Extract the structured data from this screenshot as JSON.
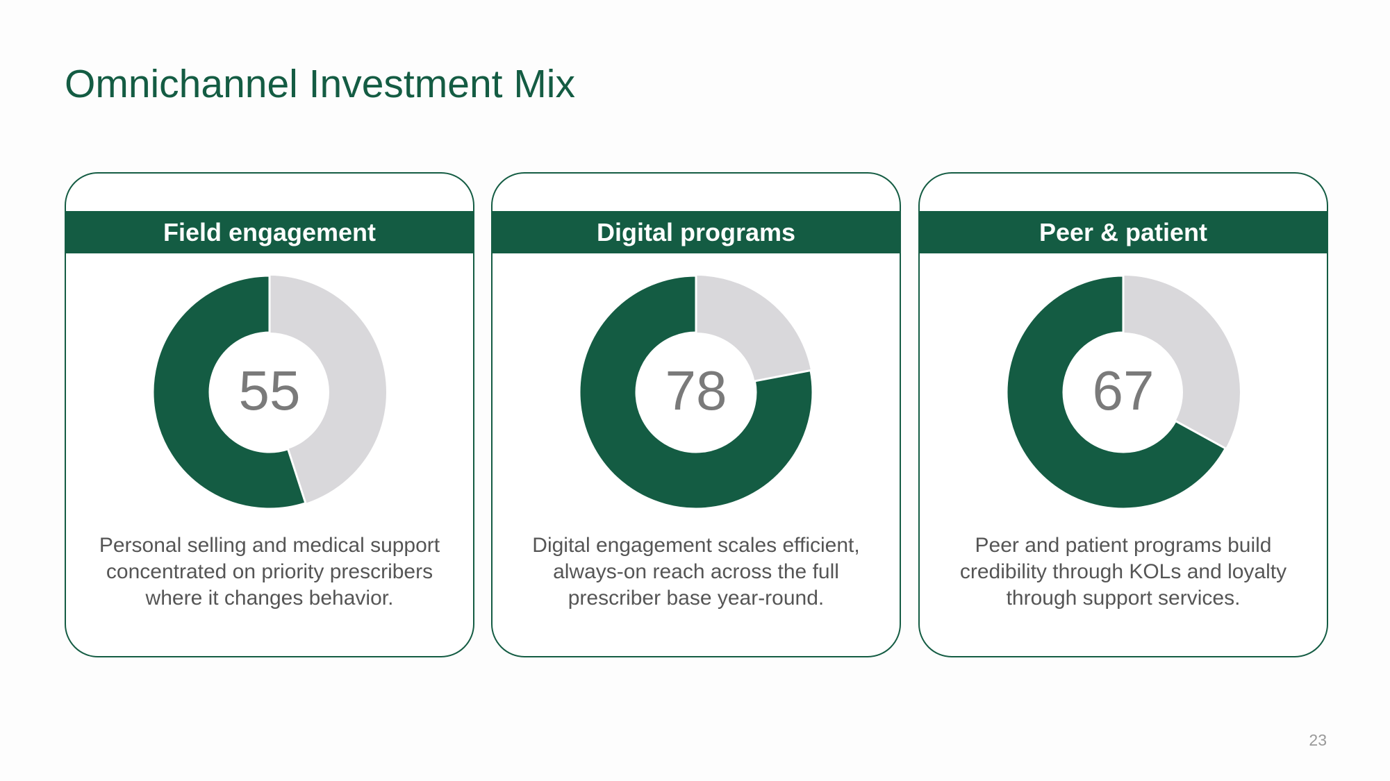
{
  "title": "Omnichannel Investment Mix",
  "page_number": 23,
  "chart_data": [
    {
      "type": "donut",
      "title": "Field engagement",
      "values": [
        55
      ],
      "color": "#145c43",
      "track_color": "#d9d8db",
      "caption": "Personal selling and medical support concentrated on priority prescribers where it changes behavior."
    },
    {
      "type": "donut",
      "title": "Digital programs",
      "values": [
        78
      ],
      "color": "#145c43",
      "track_color": "#d9d8db",
      "caption": "Digital engagement scales efficient, always-on reach across the full prescriber base year-round."
    },
    {
      "type": "donut",
      "title": "Peer & patient",
      "values": [
        67
      ],
      "color": "#145c43",
      "track_color": "#d9d8db",
      "caption": "Peer and patient programs build credibility through KOLs and loyalty through support services."
    }
  ]
}
